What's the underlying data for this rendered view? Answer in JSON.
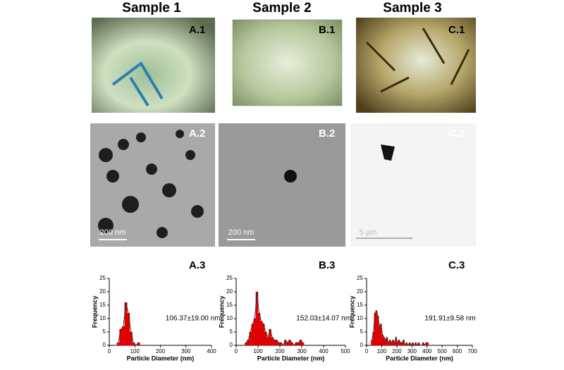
{
  "columns": [
    "Sample 1",
    "Sample 2",
    "Sample 3"
  ],
  "panel_labels": [
    [
      "A.1",
      "A.2",
      "A.3"
    ],
    [
      "B.1",
      "B.2",
      "B.3"
    ],
    [
      "C.1",
      "C.2",
      "C.3"
    ]
  ],
  "scale_bars": [
    "200 nm",
    "200 nm",
    "5 μm"
  ],
  "chart_data": [
    {
      "type": "histogram",
      "xlabel": "Particle Diameter (nm)",
      "ylabel": "Frequency",
      "annotation": "106.37±19.00 nm",
      "color": "#e60000",
      "bins": [
        30,
        40,
        50,
        60,
        70,
        80,
        90,
        100,
        110,
        120
      ],
      "values": [
        1,
        6,
        7,
        16,
        12,
        5,
        1,
        0,
        1
      ],
      "xlim": [
        0,
        400
      ],
      "xticks": [
        0,
        100,
        200,
        300,
        400
      ],
      "ylim": [
        0,
        25
      ],
      "yticks": [
        0,
        5,
        10,
        15,
        20,
        25
      ]
    },
    {
      "type": "histogram",
      "xlabel": "Particle Diameter (nm)",
      "ylabel": "Frequency",
      "annotation": "152.03±14.07 nm",
      "color": "#e60000",
      "bins": [
        40,
        50,
        60,
        70,
        80,
        90,
        100,
        110,
        120,
        130,
        140,
        150,
        160,
        170,
        180,
        190,
        200,
        210,
        220,
        230,
        240,
        250,
        260,
        270,
        280,
        290,
        300,
        310
      ],
      "values": [
        1,
        2,
        5,
        8,
        10,
        20,
        12,
        9,
        8,
        5,
        3,
        6,
        3,
        2,
        2,
        1,
        1,
        0,
        2,
        1,
        2,
        1,
        0,
        1,
        1,
        2,
        1
      ],
      "xlim": [
        0,
        500
      ],
      "xticks": [
        0,
        100,
        200,
        300,
        400,
        500
      ],
      "ylim": [
        0,
        25
      ],
      "yticks": [
        0,
        5,
        10,
        15,
        20,
        25
      ]
    },
    {
      "type": "histogram",
      "xlabel": "Particle Diameter (nm)",
      "ylabel": "Frequency",
      "annotation": "191.91±9.58 nm",
      "color": "#e60000",
      "bins": [
        30,
        40,
        50,
        60,
        70,
        80,
        90,
        100,
        110,
        120,
        130,
        140,
        150,
        160,
        170,
        180,
        190,
        200,
        210,
        220,
        230,
        240,
        250,
        260,
        270,
        280,
        290,
        300,
        310,
        320,
        330,
        340,
        350,
        360,
        370,
        380,
        390,
        400,
        410
      ],
      "values": [
        2,
        5,
        12,
        13,
        11,
        7,
        8,
        4,
        3,
        2,
        3,
        1,
        2,
        1,
        2,
        1,
        3,
        1,
        2,
        1,
        1,
        2,
        0,
        1,
        0,
        1,
        0,
        1,
        0,
        1,
        0,
        1,
        0,
        0,
        1,
        0,
        1,
        1
      ],
      "xlim": [
        0,
        700
      ],
      "xticks": [
        0,
        100,
        200,
        300,
        400,
        500,
        600,
        700
      ],
      "ylim": [
        0,
        25
      ],
      "yticks": [
        0,
        5,
        10,
        15,
        20,
        25
      ]
    }
  ]
}
